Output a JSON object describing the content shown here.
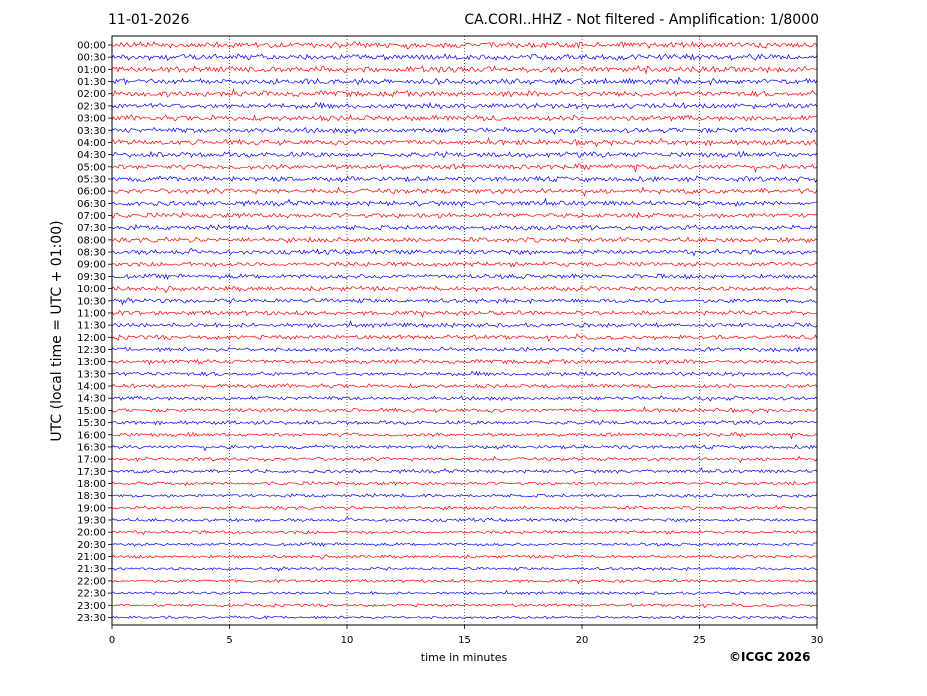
{
  "header": {
    "date": "11-01-2026",
    "title": "CA.CORI..HHZ - Not filtered - Amplification: 1/8000"
  },
  "footer": {
    "copyright": "©ICGC 2026"
  },
  "chart_data": {
    "type": "line",
    "xlabel": "time in minutes",
    "ylabel": "UTC (local time = UTC + 01:00)",
    "xlim": [
      0,
      30
    ],
    "x_ticks": [
      0,
      5,
      10,
      15,
      20,
      25,
      30
    ],
    "vertical_grid": "dotted",
    "trace_colors": [
      "#ff0000",
      "#0000ff"
    ],
    "rows": [
      "00:00",
      "00:30",
      "01:00",
      "01:30",
      "02:00",
      "02:30",
      "03:00",
      "03:30",
      "04:00",
      "04:30",
      "05:00",
      "05:30",
      "06:00",
      "06:30",
      "07:00",
      "07:30",
      "08:00",
      "08:30",
      "09:00",
      "09:30",
      "10:00",
      "10:30",
      "11:00",
      "11:30",
      "12:00",
      "12:30",
      "13:00",
      "13:30",
      "14:00",
      "14:30",
      "15:00",
      "15:30",
      "16:00",
      "16:30",
      "17:00",
      "17:30",
      "18:00",
      "18:30",
      "19:00",
      "19:30",
      "20:00",
      "20:30",
      "21:00",
      "21:30",
      "22:00",
      "22:30",
      "23:00",
      "23:30"
    ]
  }
}
